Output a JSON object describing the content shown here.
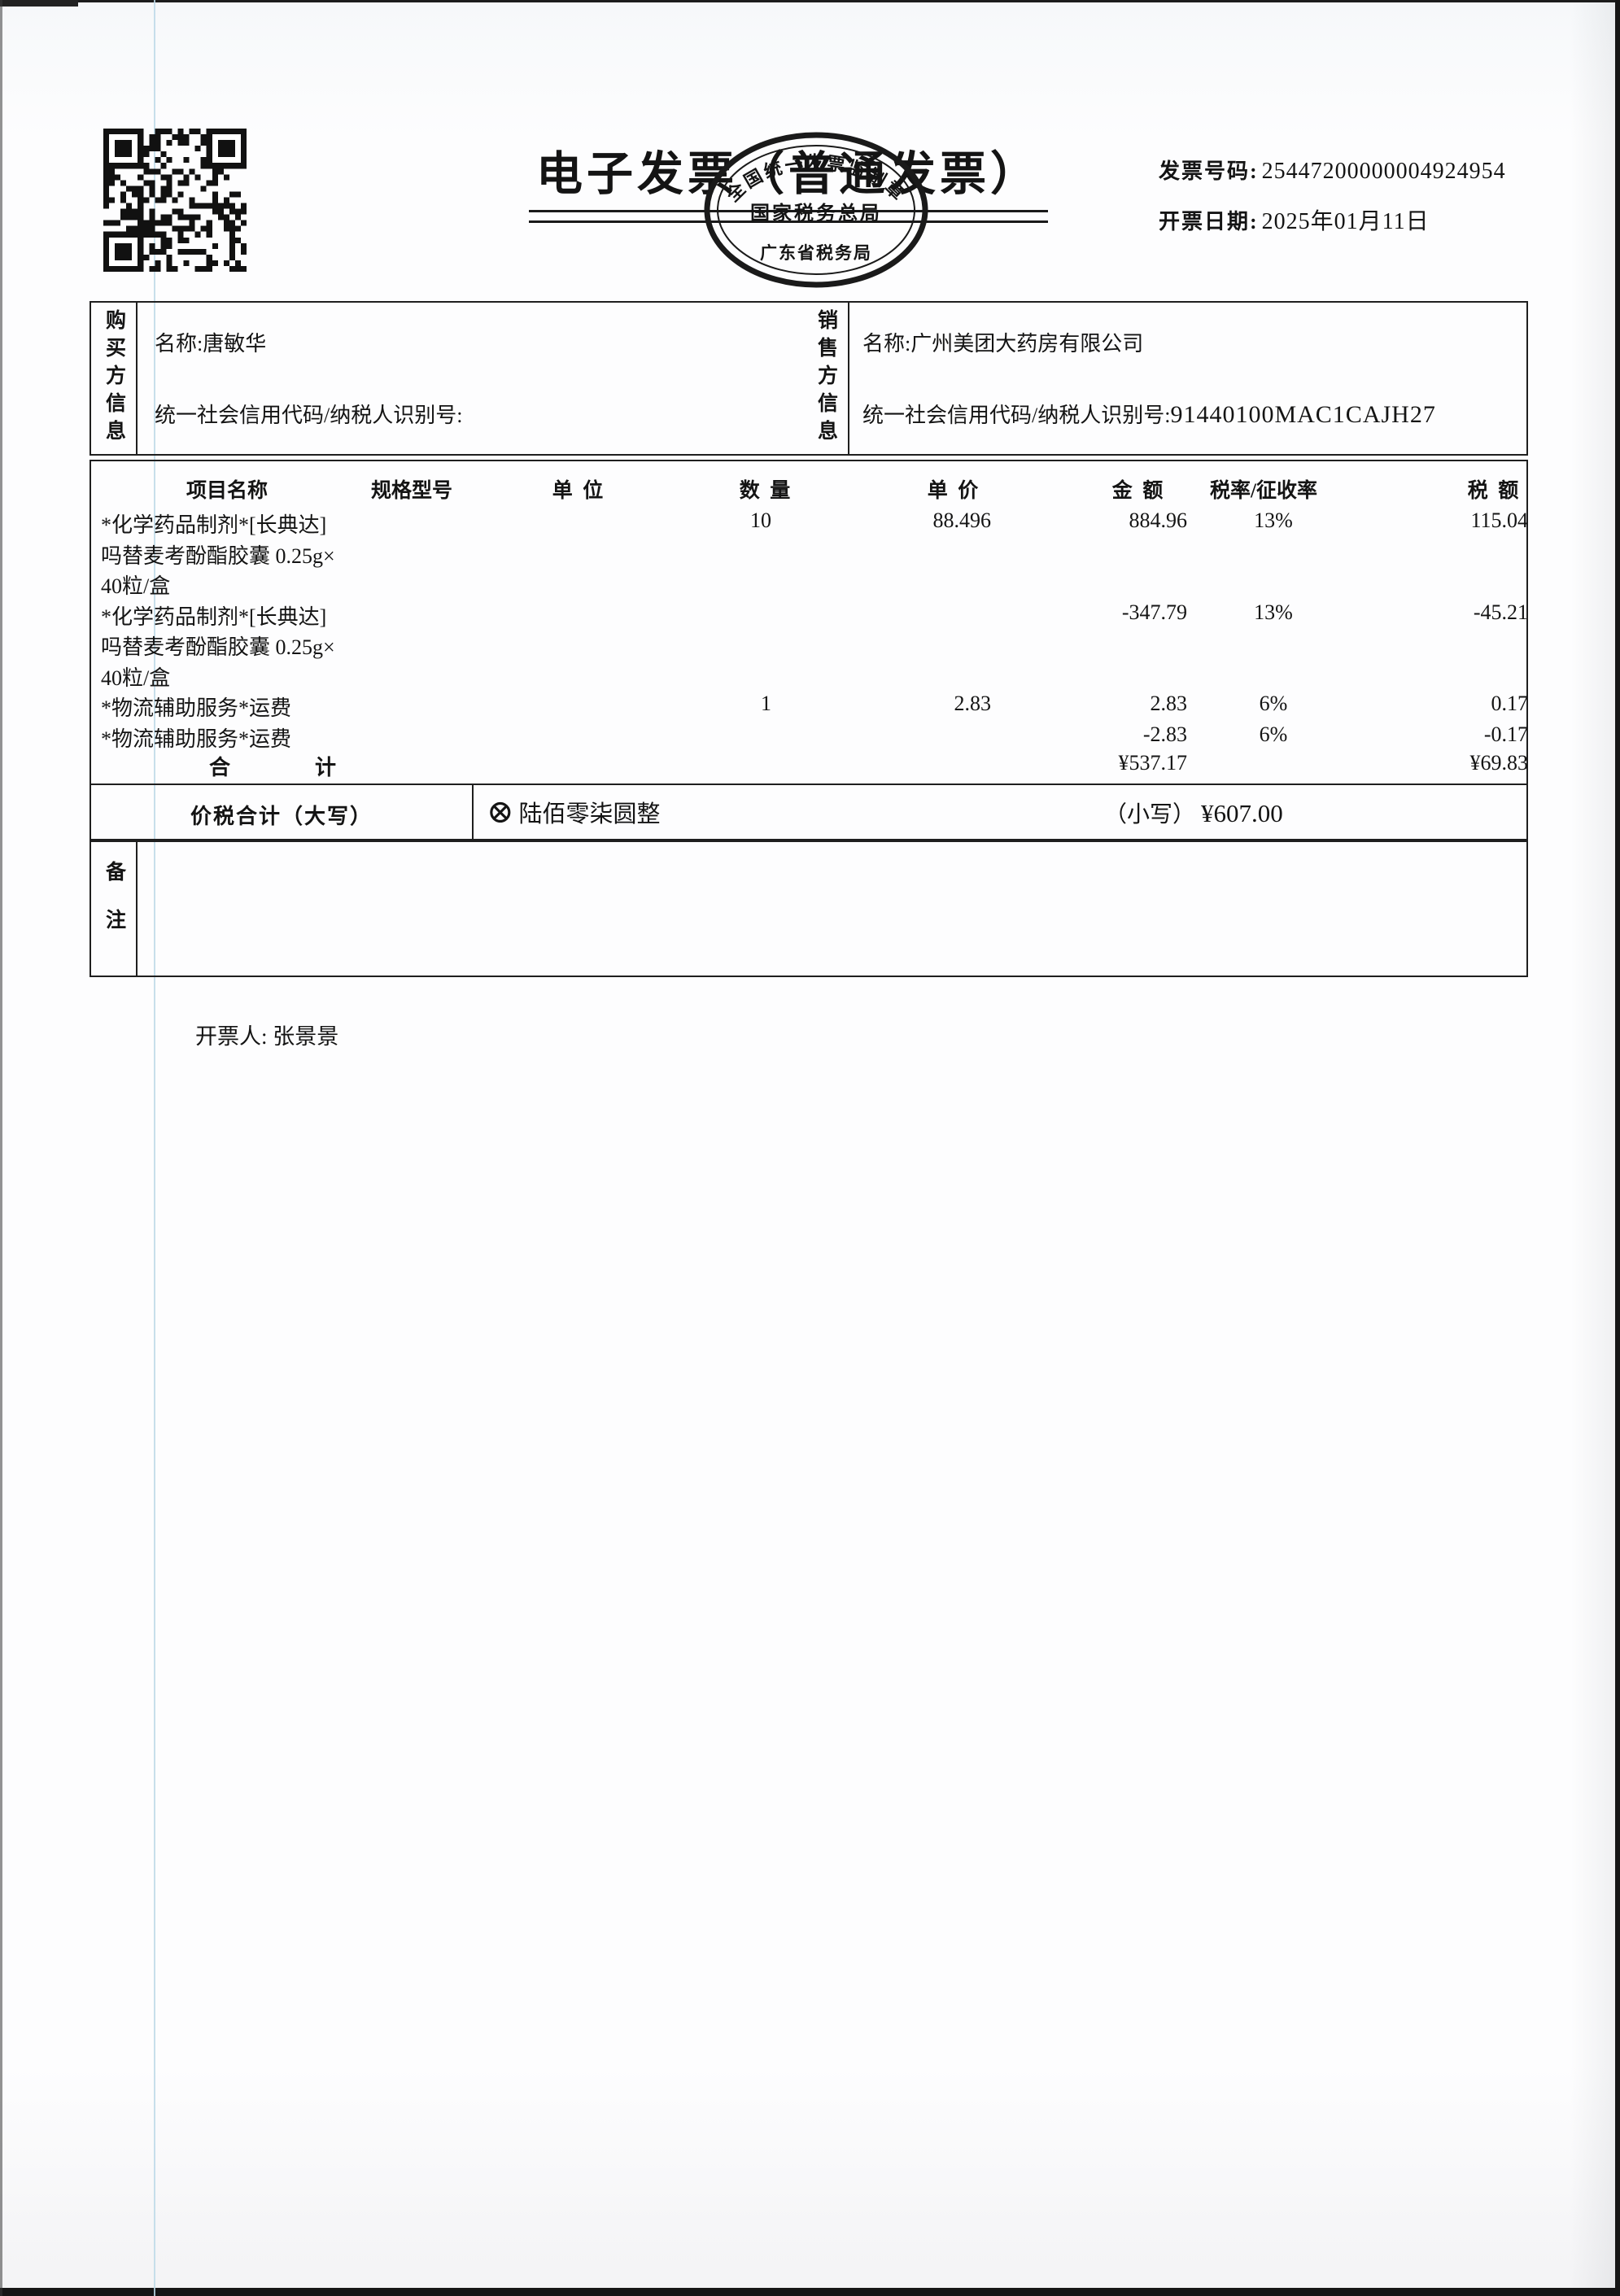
{
  "header": {
    "title": "电子发票（普通发票）",
    "invoice_no_label": "发票号码:",
    "invoice_no": "25447200000004924954",
    "date_label": "开票日期:",
    "date": "2025年01月11日",
    "stamp": {
      "arc_text": "全国统一发票监制章",
      "center_text": "国家税务总局",
      "bottom_text": "广东省税务局"
    }
  },
  "buyer": {
    "side_label": "购买方信息",
    "name_label": "名称:",
    "name": "唐敏华",
    "tax_id_label": "统一社会信用代码/纳税人识别号:",
    "tax_id": ""
  },
  "seller": {
    "side_label": "销售方信息",
    "name_label": "名称:",
    "name": "广州美团大药房有限公司",
    "tax_id_label": "统一社会信用代码/纳税人识别号:",
    "tax_id": "91440100MAC1CAJH27"
  },
  "table": {
    "headers": [
      "项目名称",
      "规格型号",
      "单  位",
      "数  量",
      "单  价",
      "金  额",
      "税率/征收率",
      "税  额"
    ],
    "rows": [
      {
        "name": "*化学药品制剂*[长典达]",
        "qty": "10",
        "price": "88.496",
        "amount": "884.96",
        "rate": "13%",
        "tax": "115.04"
      },
      {
        "name": "吗替麦考酚酯胶囊 0.25g×",
        "qty": "",
        "price": "",
        "amount": "",
        "rate": "",
        "tax": ""
      },
      {
        "name": "40粒/盒",
        "qty": "",
        "price": "",
        "amount": "",
        "rate": "",
        "tax": ""
      },
      {
        "name": "*化学药品制剂*[长典达]",
        "qty": "",
        "price": "",
        "amount": "-347.79",
        "rate": "13%",
        "tax": "-45.21"
      },
      {
        "name": "吗替麦考酚酯胶囊 0.25g×",
        "qty": "",
        "price": "",
        "amount": "",
        "rate": "",
        "tax": ""
      },
      {
        "name": "40粒/盒",
        "qty": "",
        "price": "",
        "amount": "",
        "rate": "",
        "tax": ""
      },
      {
        "name": "*物流辅助服务*运费",
        "qty": "1",
        "price": "2.83",
        "amount": "2.83",
        "rate": "6%",
        "tax": "0.17"
      },
      {
        "name": "*物流辅助服务*运费",
        "qty": "",
        "price": "",
        "amount": "-2.83",
        "rate": "6%",
        "tax": "-0.17"
      }
    ],
    "total_label": "合　　　　计",
    "total_amount": "¥537.17",
    "total_tax": "¥69.83"
  },
  "summary": {
    "label": "价税合计（大写）",
    "cross_symbol": "⊗",
    "amount_in_words": "陆佰零柒圆整",
    "small_label": "（小写）",
    "amount_in_figures": "¥607.00"
  },
  "remarks": {
    "side_label": "备注",
    "content": ""
  },
  "footer": {
    "issuer_label": "开票人:",
    "issuer": "张景景"
  }
}
